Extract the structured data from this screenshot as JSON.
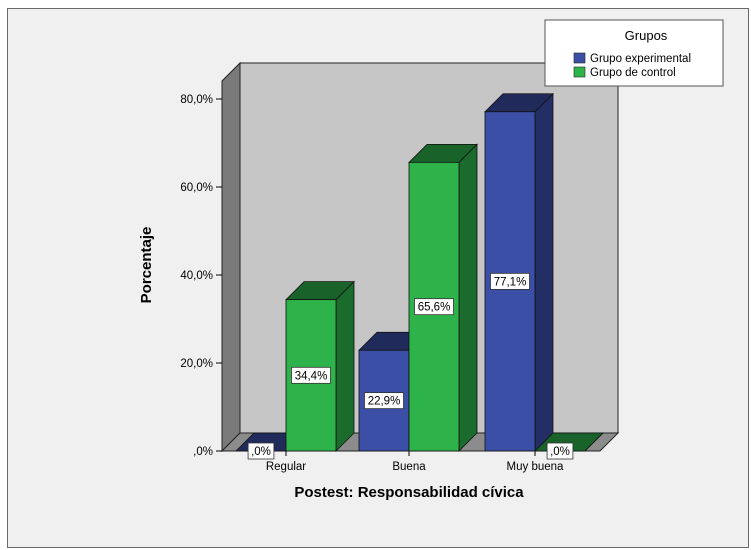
{
  "chart_data": {
    "type": "bar",
    "categories": [
      "Regular",
      "Buena",
      "Muy buena"
    ],
    "series": [
      {
        "name": "Grupo experimental",
        "values": [
          0.0,
          22.9,
          77.1
        ],
        "color": "#3b4fa6",
        "labels": [
          ",0%",
          "22,9%",
          "77,1%"
        ]
      },
      {
        "name": "Grupo de control",
        "values": [
          34.4,
          65.6,
          0.0
        ],
        "color": "#2db34a",
        "labels": [
          "34,4%",
          "65,6%",
          ",0%"
        ]
      }
    ],
    "yticks": [
      0,
      20,
      40,
      60,
      80
    ],
    "ytick_labels": [
      ",0%",
      "20,0%",
      "40,0%",
      "60,0%",
      "80,0%"
    ],
    "ylim": [
      0,
      80
    ],
    "xlabel": "Postest: Responsabilidad cívica",
    "ylabel": "Porcentaje",
    "legend_title": "Grupos",
    "legend_position": "top-right",
    "style": "3d",
    "wall_color": "#c6c6c6",
    "side_wall_color": "#7a7a7a",
    "floor_color": "#8c8c8c"
  }
}
